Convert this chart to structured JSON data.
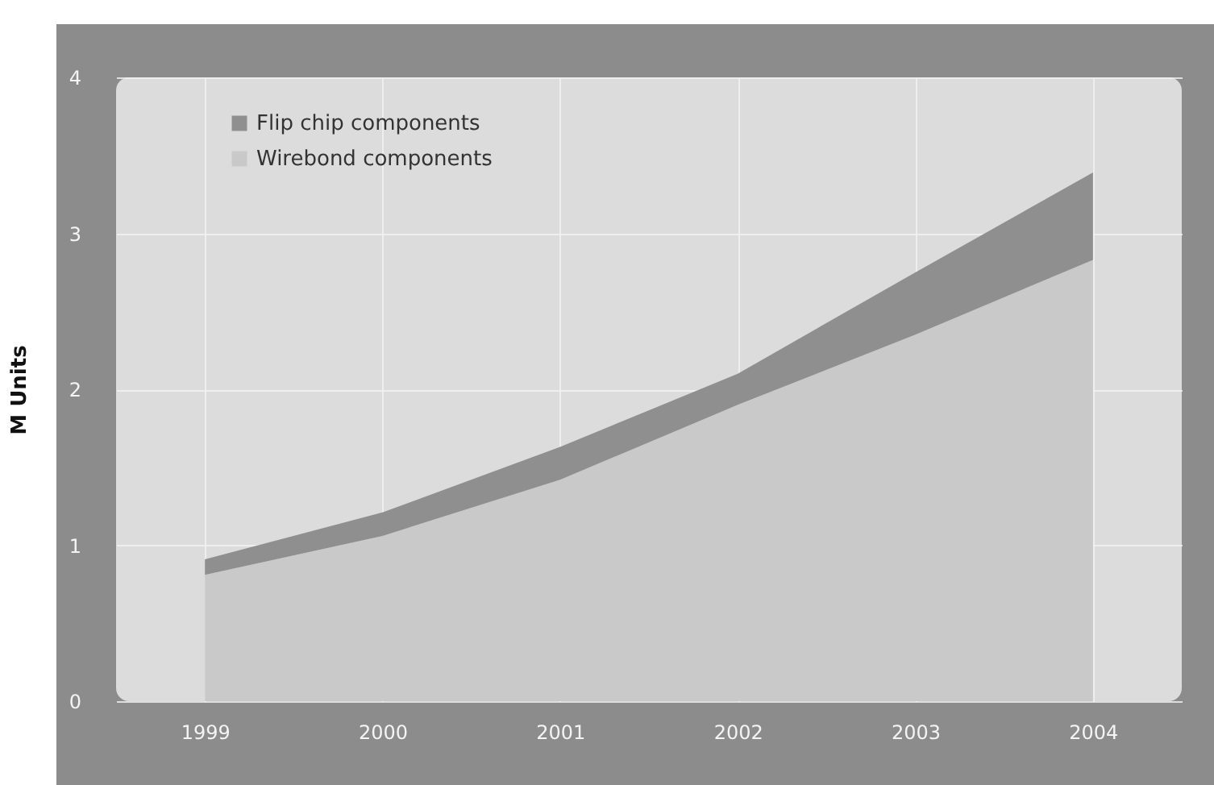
{
  "chart_data": {
    "type": "area",
    "stacked": true,
    "ylabel": "M Units",
    "x": [
      1999,
      2000,
      2001,
      2002,
      2003,
      2004
    ],
    "series": [
      {
        "name": "Wirebond components",
        "color": "#c9c9c9",
        "values": [
          0.81,
          1.06,
          1.42,
          1.9,
          2.35,
          2.83
        ]
      },
      {
        "name": "Flip chip components",
        "color": "#8f8f8f",
        "values": [
          0.1,
          0.15,
          0.21,
          0.2,
          0.4,
          0.56
        ]
      }
    ],
    "xlim": [
      1998.5,
      2004.5
    ],
    "xticks": [
      1999,
      2000,
      2001,
      2002,
      2003,
      2004
    ],
    "ylim": [
      0,
      4
    ],
    "yticks": [
      0,
      1,
      2,
      3,
      4
    ],
    "grid": true,
    "legend": "top left"
  }
}
